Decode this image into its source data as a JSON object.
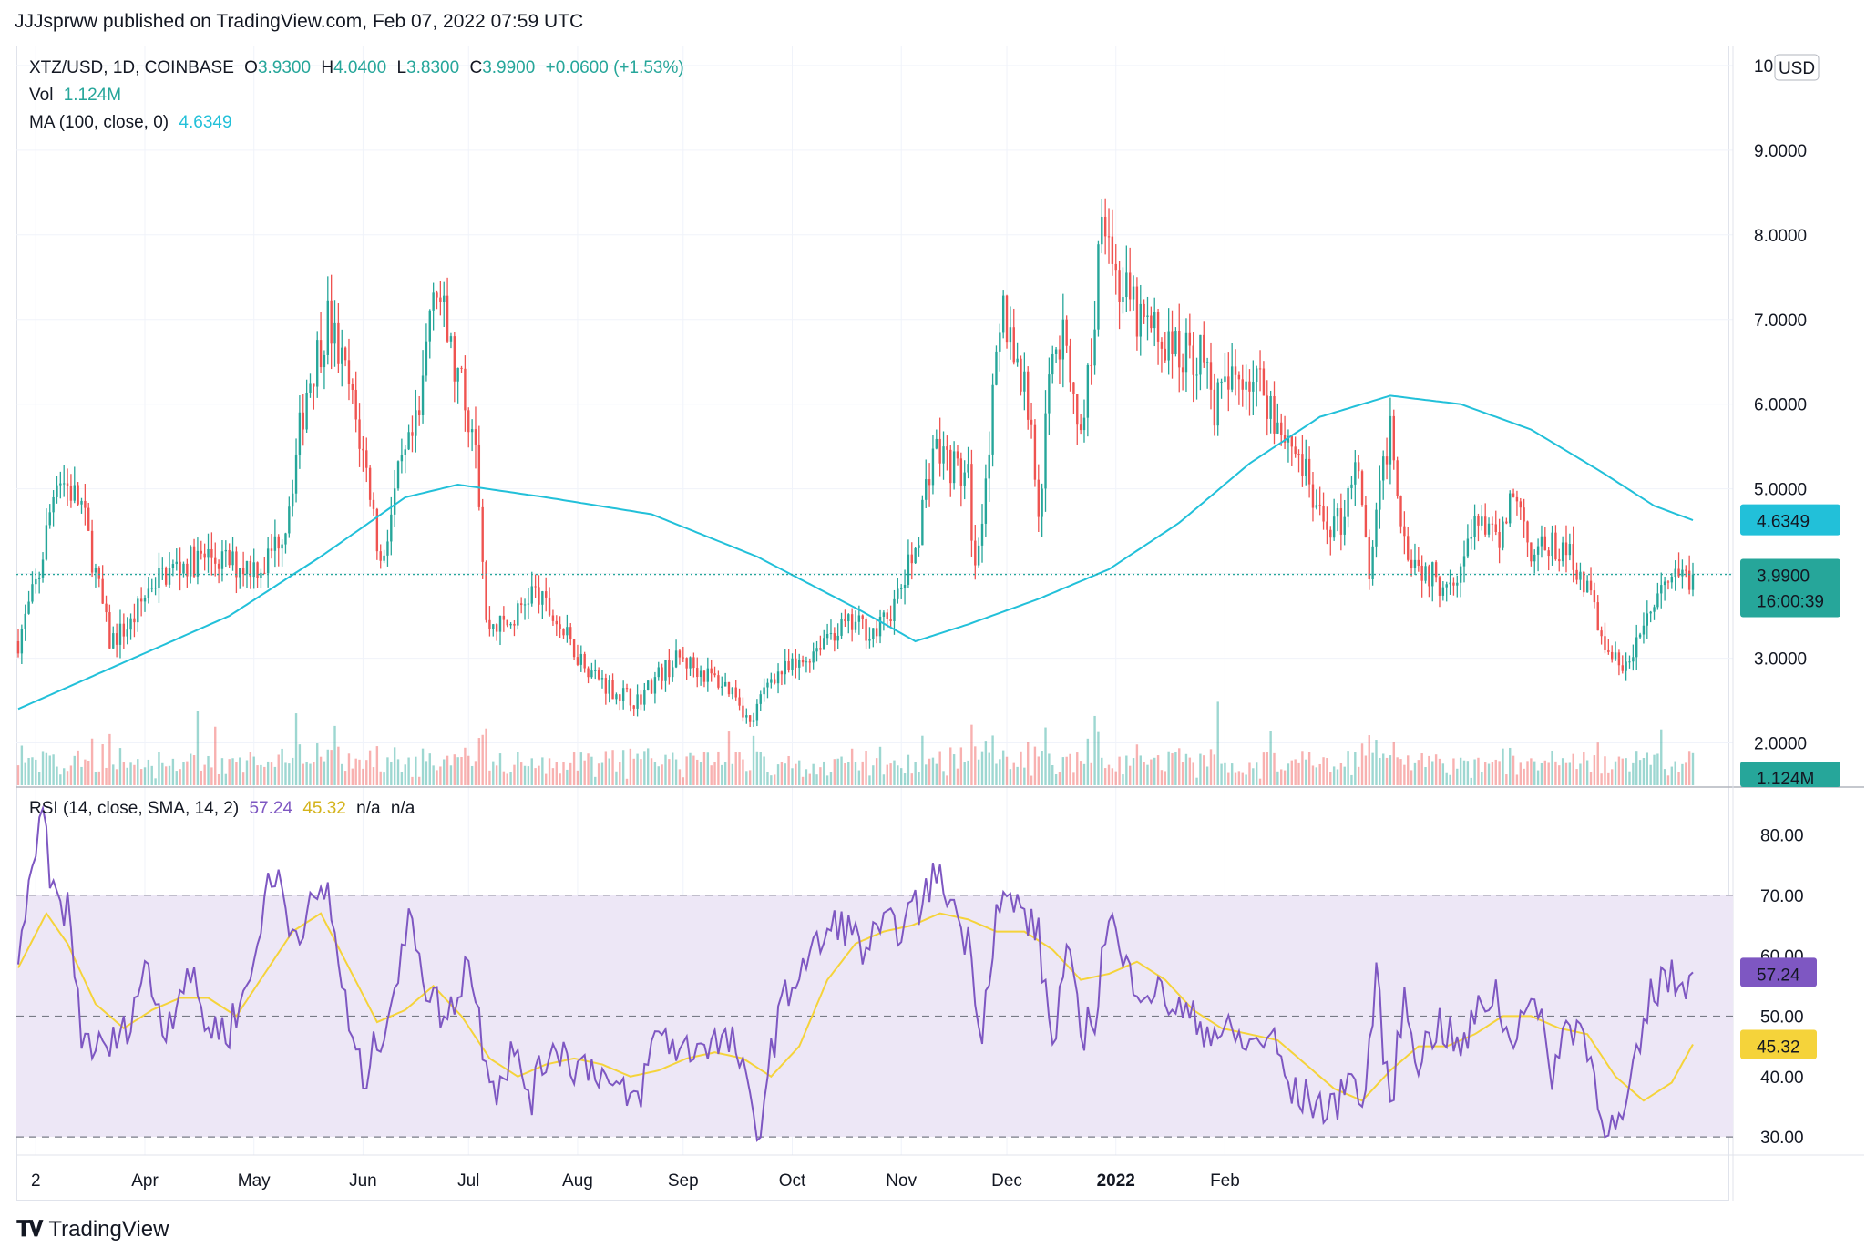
{
  "header": {
    "published_line": "JJJsprww published on TradingView.com, Feb 07, 2022 07:59 UTC"
  },
  "legend": {
    "symbol": "XTZ/USD, 1D, COINBASE",
    "open_label": "O",
    "open": "3.9300",
    "high_label": "H",
    "high": "4.0400",
    "low_label": "L",
    "low": "3.8300",
    "close_label": "C",
    "close": "3.9900",
    "change": "+0.0600 (+1.53%)",
    "vol_label": "Vol",
    "vol": "1.124M",
    "ma_label": "MA (100, close, 0)",
    "ma": "4.6349",
    "rsi_label": "RSI (14, close, SMA, 14, 2)",
    "rsi": "57.24",
    "rsi_sma": "45.32",
    "rsi_na1": "n/a",
    "rsi_na2": "n/a"
  },
  "price_axis": {
    "currency": "USD",
    "ticks": [
      "10.0000",
      "9.0000",
      "8.0000",
      "7.0000",
      "6.0000",
      "5.0000",
      "3.0000",
      "2.0000"
    ]
  },
  "badges": {
    "ma": "4.6349",
    "price": "3.9900",
    "countdown": "16:00:39",
    "volume": "1.124M",
    "rsi": "57.24",
    "rsi_sma": "45.32"
  },
  "rsi_axis": {
    "ticks": [
      "80.00",
      "70.00",
      "60.00",
      "50.00",
      "40.00",
      "30.00"
    ]
  },
  "time_axis": {
    "labels": [
      "2",
      "Apr",
      "May",
      "Jun",
      "Jul",
      "Aug",
      "Sep",
      "Oct",
      "Nov",
      "Dec",
      "2022",
      "Feb"
    ]
  },
  "footer": {
    "brand": "TradingView"
  },
  "colors": {
    "up": "#26a69a",
    "down": "#ef5350",
    "ma": "#22c0d9",
    "rsi": "#7e57c2",
    "rsi_sma": "#f5d33a",
    "rsi_band": "#ede7f6"
  },
  "chart_data": {
    "type": "candlestick",
    "symbol": "XTZ/USD",
    "interval": "1D",
    "price_ylim": [
      1.5,
      10.3
    ],
    "rsi_ylim": [
      27,
      87
    ],
    "rsi_bands": [
      30,
      50,
      70
    ],
    "price_waypoints": [
      [
        0,
        3.2
      ],
      [
        6,
        4.0
      ],
      [
        11,
        5.2
      ],
      [
        18,
        4.8
      ],
      [
        26,
        3.2
      ],
      [
        32,
        3.4
      ],
      [
        38,
        3.9
      ],
      [
        46,
        4.1
      ],
      [
        54,
        4.2
      ],
      [
        62,
        4.1
      ],
      [
        70,
        4.1
      ],
      [
        76,
        4.6
      ],
      [
        82,
        6.2
      ],
      [
        88,
        7.0
      ],
      [
        94,
        6.2
      ],
      [
        100,
        5.0
      ],
      [
        103,
        4.1
      ],
      [
        108,
        5.1
      ],
      [
        114,
        5.8
      ],
      [
        118,
        7.6
      ],
      [
        124,
        6.4
      ],
      [
        130,
        5.7
      ],
      [
        133,
        3.4
      ],
      [
        140,
        3.4
      ],
      [
        146,
        3.8
      ],
      [
        152,
        3.5
      ],
      [
        158,
        3.1
      ],
      [
        164,
        2.8
      ],
      [
        170,
        2.6
      ],
      [
        176,
        2.5
      ],
      [
        182,
        2.8
      ],
      [
        188,
        3.0
      ],
      [
        196,
        2.8
      ],
      [
        204,
        2.6
      ],
      [
        208,
        2.2
      ],
      [
        214,
        2.8
      ],
      [
        222,
        2.9
      ],
      [
        230,
        3.3
      ],
      [
        238,
        3.4
      ],
      [
        244,
        3.3
      ],
      [
        250,
        3.7
      ],
      [
        255,
        4.3
      ],
      [
        260,
        5.5
      ],
      [
        265,
        5.3
      ],
      [
        270,
        5.1
      ],
      [
        272,
        4.0
      ],
      [
        276,
        5.6
      ],
      [
        280,
        7.1
      ],
      [
        284,
        6.5
      ],
      [
        288,
        5.8
      ],
      [
        290,
        4.6
      ],
      [
        294,
        6.8
      ],
      [
        298,
        6.7
      ],
      [
        302,
        5.6
      ],
      [
        306,
        7.0
      ],
      [
        308,
        8.6
      ],
      [
        312,
        7.5
      ],
      [
        318,
        7.0
      ],
      [
        324,
        6.8
      ],
      [
        330,
        6.6
      ],
      [
        336,
        6.6
      ],
      [
        340,
        6.0
      ],
      [
        348,
        6.4
      ],
      [
        354,
        6.2
      ],
      [
        358,
        5.8
      ],
      [
        364,
        5.4
      ],
      [
        370,
        4.6
      ],
      [
        376,
        4.6
      ],
      [
        380,
        5.4
      ],
      [
        384,
        4.0
      ],
      [
        390,
        5.8
      ],
      [
        394,
        4.4
      ],
      [
        398,
        4.1
      ],
      [
        404,
        3.9
      ],
      [
        410,
        4.1
      ],
      [
        416,
        4.7
      ],
      [
        420,
        4.3
      ],
      [
        425,
        5.0
      ],
      [
        430,
        4.3
      ],
      [
        436,
        4.3
      ],
      [
        442,
        4.2
      ],
      [
        448,
        3.6
      ],
      [
        452,
        3.0
      ],
      [
        458,
        2.9
      ],
      [
        462,
        3.4
      ],
      [
        466,
        3.7
      ],
      [
        470,
        3.9
      ],
      [
        476,
        4.0
      ]
    ],
    "ma_waypoints": [
      [
        0,
        2.4
      ],
      [
        30,
        2.95
      ],
      [
        60,
        3.5
      ],
      [
        86,
        4.2
      ],
      [
        110,
        4.9
      ],
      [
        125,
        5.05
      ],
      [
        150,
        4.9
      ],
      [
        180,
        4.7
      ],
      [
        210,
        4.2
      ],
      [
        240,
        3.55
      ],
      [
        255,
        3.2
      ],
      [
        270,
        3.4
      ],
      [
        290,
        3.7
      ],
      [
        310,
        4.05
      ],
      [
        330,
        4.6
      ],
      [
        350,
        5.3
      ],
      [
        370,
        5.85
      ],
      [
        390,
        6.1
      ],
      [
        410,
        6.0
      ],
      [
        430,
        5.7
      ],
      [
        450,
        5.2
      ],
      [
        465,
        4.8
      ],
      [
        476,
        4.63
      ]
    ],
    "rsi_waypoints": [
      [
        0,
        61
      ],
      [
        4,
        72
      ],
      [
        7,
        84
      ],
      [
        10,
        69
      ],
      [
        14,
        68
      ],
      [
        18,
        47
      ],
      [
        24,
        44
      ],
      [
        30,
        47
      ],
      [
        36,
        58
      ],
      [
        42,
        48
      ],
      [
        48,
        58
      ],
      [
        54,
        48
      ],
      [
        60,
        48
      ],
      [
        66,
        56
      ],
      [
        70,
        70
      ],
      [
        74,
        73
      ],
      [
        78,
        64
      ],
      [
        84,
        68
      ],
      [
        88,
        71
      ],
      [
        94,
        48
      ],
      [
        98,
        39
      ],
      [
        104,
        49
      ],
      [
        108,
        57
      ],
      [
        112,
        67
      ],
      [
        116,
        55
      ],
      [
        122,
        49
      ],
      [
        128,
        60
      ],
      [
        132,
        46
      ],
      [
        136,
        38
      ],
      [
        140,
        44
      ],
      [
        146,
        37
      ],
      [
        152,
        46
      ],
      [
        158,
        42
      ],
      [
        164,
        42
      ],
      [
        170,
        37
      ],
      [
        176,
        36
      ],
      [
        182,
        48
      ],
      [
        188,
        44
      ],
      [
        196,
        46
      ],
      [
        204,
        45
      ],
      [
        210,
        30
      ],
      [
        216,
        50
      ],
      [
        222,
        58
      ],
      [
        228,
        62
      ],
      [
        234,
        66
      ],
      [
        240,
        61
      ],
      [
        246,
        64
      ],
      [
        250,
        65
      ],
      [
        256,
        68
      ],
      [
        260,
        73
      ],
      [
        264,
        71
      ],
      [
        270,
        62
      ],
      [
        274,
        48
      ],
      [
        278,
        68
      ],
      [
        282,
        69
      ],
      [
        286,
        67
      ],
      [
        290,
        63
      ],
      [
        294,
        45
      ],
      [
        298,
        61
      ],
      [
        302,
        47
      ],
      [
        306,
        50
      ],
      [
        310,
        68
      ],
      [
        314,
        58
      ],
      [
        320,
        55
      ],
      [
        326,
        53
      ],
      [
        332,
        50
      ],
      [
        338,
        48
      ],
      [
        344,
        47
      ],
      [
        350,
        45
      ],
      [
        356,
        47
      ],
      [
        362,
        37
      ],
      [
        368,
        36
      ],
      [
        374,
        34
      ],
      [
        378,
        42
      ],
      [
        382,
        34
      ],
      [
        386,
        56
      ],
      [
        390,
        35
      ],
      [
        394,
        53
      ],
      [
        398,
        43
      ],
      [
        404,
        49
      ],
      [
        410,
        44
      ],
      [
        416,
        52
      ],
      [
        420,
        54
      ],
      [
        424,
        45
      ],
      [
        428,
        53
      ],
      [
        432,
        50
      ],
      [
        436,
        41
      ],
      [
        440,
        48
      ],
      [
        444,
        49
      ],
      [
        448,
        40
      ],
      [
        452,
        31
      ],
      [
        456,
        32
      ],
      [
        460,
        42
      ],
      [
        464,
        53
      ],
      [
        468,
        57
      ],
      [
        472,
        55
      ],
      [
        476,
        57.24
      ]
    ],
    "rsi_sma_waypoints": [
      [
        0,
        58
      ],
      [
        8,
        67
      ],
      [
        14,
        62
      ],
      [
        22,
        52
      ],
      [
        30,
        48
      ],
      [
        38,
        51
      ],
      [
        46,
        53
      ],
      [
        54,
        53
      ],
      [
        62,
        50
      ],
      [
        70,
        57
      ],
      [
        78,
        64
      ],
      [
        86,
        67
      ],
      [
        94,
        58
      ],
      [
        102,
        49
      ],
      [
        110,
        51
      ],
      [
        118,
        55
      ],
      [
        126,
        50
      ],
      [
        134,
        43
      ],
      [
        142,
        40
      ],
      [
        150,
        42
      ],
      [
        158,
        43
      ],
      [
        166,
        42
      ],
      [
        174,
        40
      ],
      [
        182,
        41
      ],
      [
        190,
        43
      ],
      [
        198,
        44
      ],
      [
        206,
        43
      ],
      [
        214,
        40
      ],
      [
        222,
        45
      ],
      [
        230,
        56
      ],
      [
        238,
        62
      ],
      [
        246,
        64
      ],
      [
        254,
        65
      ],
      [
        262,
        67
      ],
      [
        270,
        66
      ],
      [
        278,
        64
      ],
      [
        286,
        64
      ],
      [
        294,
        61
      ],
      [
        302,
        56
      ],
      [
        310,
        57
      ],
      [
        318,
        59
      ],
      [
        326,
        56
      ],
      [
        334,
        51
      ],
      [
        342,
        48
      ],
      [
        350,
        47
      ],
      [
        358,
        46
      ],
      [
        366,
        42
      ],
      [
        374,
        38
      ],
      [
        382,
        36
      ],
      [
        390,
        41
      ],
      [
        398,
        45
      ],
      [
        406,
        45
      ],
      [
        414,
        47
      ],
      [
        422,
        50
      ],
      [
        430,
        50
      ],
      [
        438,
        48
      ],
      [
        446,
        47
      ],
      [
        454,
        40
      ],
      [
        462,
        36
      ],
      [
        470,
        39
      ],
      [
        476,
        45.32
      ]
    ],
    "last_close": 3.99,
    "ma_value": 4.6349,
    "volume_last": "1.124M",
    "rsi_value": 57.24,
    "rsi_sma_value": 45.32
  }
}
